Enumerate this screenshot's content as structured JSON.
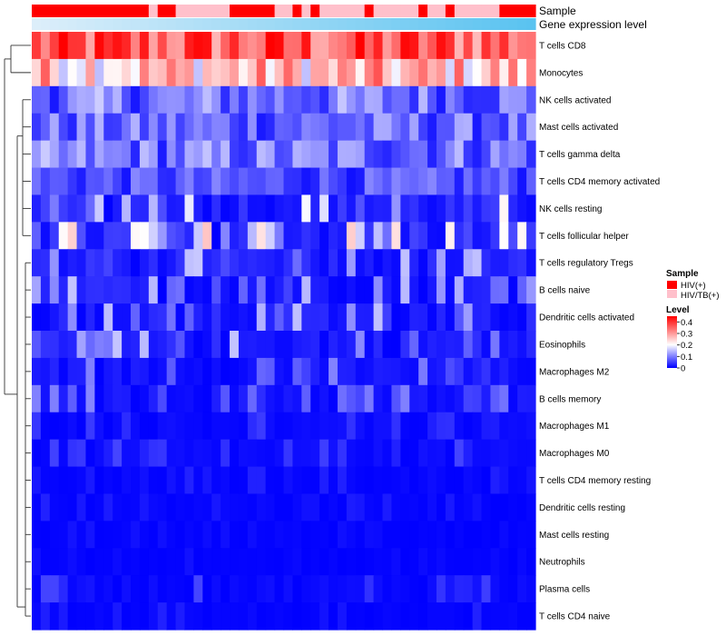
{
  "chart_data": {
    "type": "heatmap",
    "title": "",
    "n_columns": 56,
    "rows": [
      "T cells CD8",
      "Monocytes",
      "NK cells activated",
      "Mast cells activated",
      "T cells gamma delta",
      "T cells CD4 memory activated",
      "NK cells resting",
      "T cells follicular helper",
      "T cells regulatory  Tregs",
      "B cells naive",
      "Dendritic cells activated",
      "Eosinophils",
      "Macrophages M2",
      "B cells memory",
      "Macrophages M1",
      "Macrophages M0",
      "T cells CD4 memory resting",
      "Dendritic cells resting",
      "Mast cells resting",
      "Neutrophils",
      "Plasma cells",
      "T cells CD4 naive"
    ],
    "row_means": [
      0.36,
      0.26,
      0.09,
      0.08,
      0.09,
      0.06,
      0.04,
      0.05,
      0.03,
      0.03,
      0.03,
      0.03,
      0.02,
      0.02,
      0.01,
      0.01,
      0.005,
      0.005,
      0.003,
      0.003,
      0.01,
      0.005
    ],
    "annotations": [
      {
        "label": "Sample",
        "values": [
          "HIV(+)",
          "HIV(+)",
          "HIV(+)",
          "HIV(+)",
          "HIV(+)",
          "HIV(+)",
          "HIV(+)",
          "HIV(+)",
          "HIV(+)",
          "HIV(+)",
          "HIV(+)",
          "HIV(+)",
          "HIV(+)",
          "HIV/TB(+)",
          "HIV(+)",
          "HIV(+)",
          "HIV/TB(+)",
          "HIV/TB(+)",
          "HIV/TB(+)",
          "HIV/TB(+)",
          "HIV/TB(+)",
          "HIV/TB(+)",
          "HIV(+)",
          "HIV(+)",
          "HIV(+)",
          "HIV(+)",
          "HIV(+)",
          "HIV/TB(+)",
          "HIV/TB(+)",
          "HIV(+)",
          "HIV/TB(+)",
          "HIV(+)",
          "HIV/TB(+)",
          "HIV/TB(+)",
          "HIV/TB(+)",
          "HIV/TB(+)",
          "HIV/TB(+)",
          "HIV(+)",
          "HIV/TB(+)",
          "HIV/TB(+)",
          "HIV/TB(+)",
          "HIV/TB(+)",
          "HIV/TB(+)",
          "HIV(+)",
          "HIV/TB(+)",
          "HIV/TB(+)",
          "HIV(+)",
          "HIV/TB(+)",
          "HIV/TB(+)",
          "HIV/TB(+)",
          "HIV/TB(+)",
          "HIV/TB(+)",
          "HIV(+)",
          "HIV(+)",
          "HIV(+)",
          "HIV(+)"
        ]
      },
      {
        "label": "Gene expression level",
        "values": "increasing gradient from light blue to sky blue across columns"
      }
    ],
    "legends": [
      {
        "title": "Sample",
        "entries": [
          {
            "label": "HIV(+)",
            "color": "#FF0000"
          },
          {
            "label": "HIV/TB(+)",
            "color": "#FFC0CB"
          }
        ]
      },
      {
        "title": "Level",
        "ticks": [
          "0.4",
          "0.3",
          "0.2",
          "0.1",
          "0"
        ],
        "colors": [
          "#0000FF",
          "#FFFFFF",
          "#FF0000"
        ],
        "range": [
          0,
          0.45
        ]
      }
    ],
    "legend_position": "right",
    "row_dendrogram": true
  }
}
